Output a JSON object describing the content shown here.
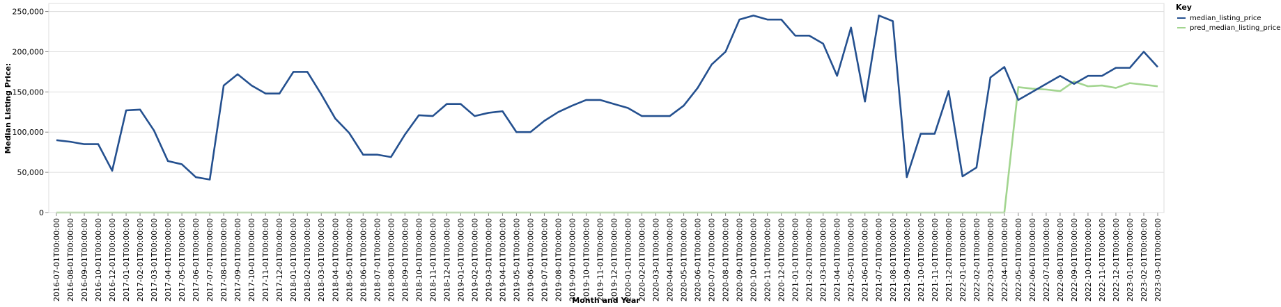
{
  "chart_data": {
    "type": "line",
    "xlabel": "Month and Year",
    "ylabel": "Median Listing Price:",
    "ylim": [
      0,
      260000
    ],
    "yticks": [
      0,
      50000,
      100000,
      150000,
      200000,
      250000
    ],
    "ytick_labels": [
      "0",
      "50,000",
      "100,000",
      "150,000",
      "200,000",
      "250,000"
    ],
    "grid": true,
    "legend": {
      "title": "Key",
      "placement": "top-right"
    },
    "x": [
      "2016-07-01T00:00:00",
      "2016-08-01T00:00:00",
      "2016-09-01T00:00:00",
      "2016-10-01T00:00:00",
      "2016-12-01T00:00:00",
      "2017-01-01T00:00:00",
      "2017-02-01T00:00:00",
      "2017-03-01T00:00:00",
      "2017-04-01T00:00:00",
      "2017-05-01T00:00:00",
      "2017-06-01T00:00:00",
      "2017-07-01T00:00:00",
      "2017-08-01T00:00:00",
      "2017-09-01T00:00:00",
      "2017-10-01T00:00:00",
      "2017-11-01T00:00:00",
      "2017-12-01T00:00:00",
      "2018-01-01T00:00:00",
      "2018-02-01T00:00:00",
      "2018-03-01T00:00:00",
      "2018-04-01T00:00:00",
      "2018-05-01T00:00:00",
      "2018-06-01T00:00:00",
      "2018-07-01T00:00:00",
      "2018-08-01T00:00:00",
      "2018-09-01T00:00:00",
      "2018-10-01T00:00:00",
      "2018-11-01T00:00:00",
      "2018-12-01T00:00:00",
      "2019-01-01T00:00:00",
      "2019-02-01T00:00:00",
      "2019-03-01T00:00:00",
      "2019-04-01T00:00:00",
      "2019-05-01T00:00:00",
      "2019-06-01T00:00:00",
      "2019-07-01T00:00:00",
      "2019-08-01T00:00:00",
      "2019-09-01T00:00:00",
      "2019-10-01T00:00:00",
      "2019-11-01T00:00:00",
      "2019-12-01T00:00:00",
      "2020-01-01T00:00:00",
      "2020-02-01T00:00:00",
      "2020-03-01T00:00:00",
      "2020-04-01T00:00:00",
      "2020-05-01T00:00:00",
      "2020-06-01T00:00:00",
      "2020-07-01T00:00:00",
      "2020-08-01T00:00:00",
      "2020-09-01T00:00:00",
      "2020-10-01T00:00:00",
      "2020-11-01T00:00:00",
      "2020-12-01T00:00:00",
      "2021-01-01T00:00:00",
      "2021-02-01T00:00:00",
      "2021-03-01T00:00:00",
      "2021-04-01T00:00:00",
      "2021-05-01T00:00:00",
      "2021-06-01T00:00:00",
      "2021-07-01T00:00:00",
      "2021-08-01T00:00:00",
      "2021-09-01T00:00:00",
      "2021-10-01T00:00:00",
      "2021-11-01T00:00:00",
      "2021-12-01T00:00:00",
      "2022-01-01T00:00:00",
      "2022-02-01T00:00:00",
      "2022-03-01T00:00:00",
      "2022-04-01T00:00:00",
      "2022-05-01T00:00:00",
      "2022-06-01T00:00:00",
      "2022-07-01T00:00:00",
      "2022-08-01T00:00:00",
      "2022-09-01T00:00:00",
      "2022-10-01T00:00:00",
      "2022-11-01T00:00:00",
      "2022-12-01T00:00:00",
      "2023-01-01T00:00:00",
      "2023-02-01T00:00:00",
      "2023-03-01T00:00:00"
    ],
    "series": [
      {
        "name": "median_listing_price",
        "color": "#24508f",
        "values": [
          90000,
          88000,
          85000,
          85000,
          52000,
          127000,
          128000,
          102000,
          64000,
          60000,
          44000,
          41000,
          158000,
          172000,
          158000,
          148000,
          148000,
          175000,
          175000,
          147000,
          117000,
          99000,
          72000,
          72000,
          69000,
          97000,
          121000,
          120000,
          135000,
          135000,
          120000,
          124000,
          126000,
          100000,
          100000,
          114000,
          125000,
          133000,
          140000,
          140000,
          135000,
          130000,
          120000,
          120000,
          120000,
          133000,
          155000,
          184000,
          200000,
          240000,
          245000,
          240000,
          240000,
          220000,
          220000,
          210000,
          170000,
          230000,
          138000,
          245000,
          238000,
          44000,
          98000,
          98000,
          151000,
          45000,
          56000,
          168000,
          181000,
          140000,
          150000,
          160000,
          170000,
          160000,
          170000,
          170000,
          180000,
          180000,
          200000,
          181000
        ]
      },
      {
        "name": "pred_median_listing_price",
        "color": "#a2d58f",
        "values": [
          0,
          0,
          0,
          0,
          0,
          0,
          0,
          0,
          0,
          0,
          0,
          0,
          0,
          0,
          0,
          0,
          0,
          0,
          0,
          0,
          0,
          0,
          0,
          0,
          0,
          0,
          0,
          0,
          0,
          0,
          0,
          0,
          0,
          0,
          0,
          0,
          0,
          0,
          0,
          0,
          0,
          0,
          0,
          0,
          0,
          0,
          0,
          0,
          0,
          0,
          0,
          0,
          0,
          0,
          0,
          0,
          0,
          0,
          0,
          0,
          0,
          0,
          0,
          0,
          0,
          0,
          0,
          0,
          0,
          156000,
          154000,
          153000,
          151000,
          163000,
          157000,
          158000,
          155000,
          161000,
          159000,
          157000
        ]
      }
    ]
  }
}
